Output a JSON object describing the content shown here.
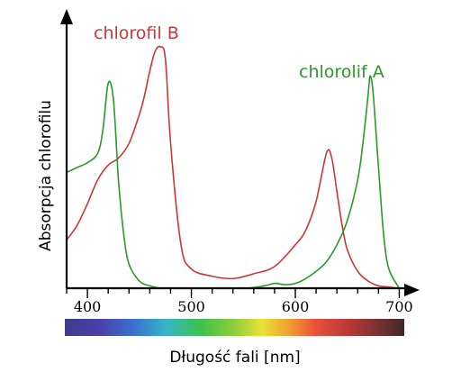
{
  "chart_data": {
    "type": "line",
    "title": "",
    "xlabel": "Długość fali [nm]",
    "ylabel": "Absorpcja chlorofilu",
    "xlim": [
      380,
      710
    ],
    "ylim": [
      0,
      1
    ],
    "x_ticks": [
      400,
      500,
      600,
      700
    ],
    "y_tick_labels_shown": false,
    "spectrum_bar": true,
    "series": [
      {
        "name": "chlorofil B",
        "color": "#d03535",
        "x": [
          380,
          390,
          400,
          410,
          420,
          430,
          440,
          450,
          455,
          460,
          465,
          470,
          475,
          480,
          490,
          500,
          520,
          540,
          560,
          580,
          600,
          610,
          620,
          630,
          635,
          640,
          645,
          650,
          660,
          670,
          680,
          690,
          700
        ],
        "y": [
          0.2,
          0.26,
          0.35,
          0.45,
          0.51,
          0.54,
          0.6,
          0.72,
          0.8,
          0.9,
          0.98,
          1.0,
          0.95,
          0.6,
          0.18,
          0.08,
          0.05,
          0.04,
          0.06,
          0.09,
          0.18,
          0.24,
          0.36,
          0.56,
          0.54,
          0.4,
          0.26,
          0.16,
          0.07,
          0.03,
          0.01,
          0.005,
          0.0
        ]
      },
      {
        "name": "chlorolif A",
        "color": "#2a9a2a",
        "x": [
          380,
          390,
          400,
          410,
          415,
          420,
          425,
          430,
          435,
          440,
          450,
          460,
          470,
          480,
          500,
          550,
          570,
          580,
          590,
          600,
          610,
          620,
          630,
          640,
          650,
          660,
          665,
          670,
          672,
          675,
          680,
          685,
          690,
          700
        ],
        "y": [
          0.48,
          0.5,
          0.52,
          0.56,
          0.66,
          0.85,
          0.78,
          0.44,
          0.22,
          0.1,
          0.03,
          0.01,
          0.0,
          0.0,
          0.0,
          0.0,
          0.01,
          0.02,
          0.015,
          0.02,
          0.04,
          0.07,
          0.11,
          0.18,
          0.28,
          0.45,
          0.6,
          0.8,
          0.88,
          0.8,
          0.5,
          0.22,
          0.08,
          0.0
        ]
      }
    ]
  }
}
